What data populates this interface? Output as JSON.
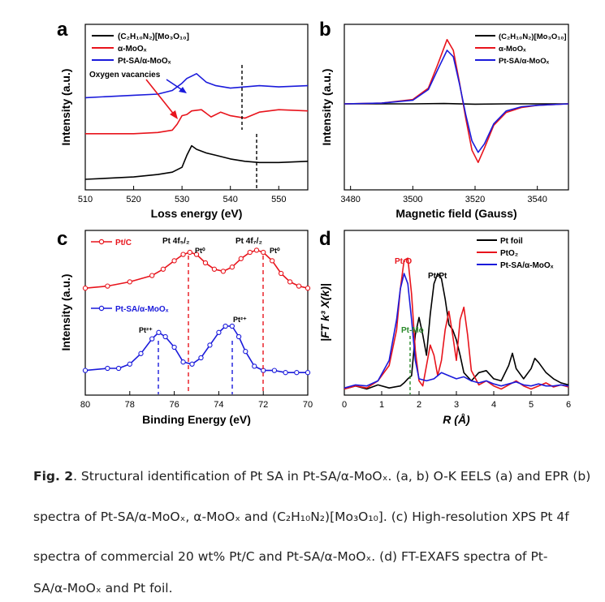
{
  "colors": {
    "black": "#000000",
    "red": "#e8141c",
    "blue": "#1a1adb",
    "green": "#2a8a2a"
  },
  "panels": {
    "a": {
      "letter": "a",
      "xlabel": "Loss energy (eV)",
      "ylabel": "Intensity (a.u.)",
      "xticks": [
        "510",
        "520",
        "530",
        "540",
        "550"
      ],
      "legend": [
        "(C₂H₁₀N₂)[Mo₃O₁₀]",
        "α-MoOₓ",
        "Pt-SA/α-MoOₓ"
      ],
      "annotation": "Oxygen vacancies"
    },
    "b": {
      "letter": "b",
      "xlabel": "Magnetic field (Gauss)",
      "ylabel": "Intensity (a.u.)",
      "xticks": [
        "3480",
        "3500",
        "3520",
        "3540"
      ],
      "legend": [
        "(C₂H₁₀N₂)[Mo₃O₁₀]",
        "α-MoOₓ",
        "Pt-SA/α-MoOₓ"
      ]
    },
    "c": {
      "letter": "c",
      "xlabel": "Binding Energy (eV)",
      "ylabel": "Intensity (a.u.)",
      "xticks": [
        "80",
        "78",
        "76",
        "74",
        "72",
        "70"
      ],
      "legend": [
        "Pt/C",
        "Pt-SA/α-MoOₓ"
      ],
      "peak_labels": [
        "Pt 4f₅/₂",
        "Pt 4f₇/₂",
        "Pt⁰",
        "Pt⁰",
        "Pt²⁺",
        "Pt²⁺"
      ]
    },
    "d": {
      "letter": "d",
      "xlabel": "R (Å)",
      "ylabel": "|FT k³ X(k)|",
      "xticks": [
        "0",
        "1",
        "2",
        "3",
        "4",
        "5",
        "6"
      ],
      "legend": [
        "Pt foil",
        "PtO₂",
        "Pt-SA/α-MoOₓ"
      ],
      "peak_labels": [
        "Pt-O",
        "Pt-Pt",
        "Pt-Mo"
      ]
    }
  },
  "chart_data": [
    {
      "panel": "a",
      "type": "line",
      "xlim": [
        510,
        556
      ],
      "yaxis_ticks": false,
      "series": [
        {
          "name": "(C₂H₁₀N₂)[Mo₃O₁₀]",
          "color": "#000000",
          "x": [
            510,
            515,
            520,
            525,
            528,
            530,
            531,
            532,
            533,
            535,
            537,
            540,
            543,
            546,
            550,
            556
          ],
          "y": [
            0.02,
            0.03,
            0.04,
            0.06,
            0.08,
            0.12,
            0.22,
            0.3,
            0.27,
            0.24,
            0.22,
            0.19,
            0.17,
            0.16,
            0.16,
            0.17
          ]
        },
        {
          "name": "α-MoOₓ",
          "color": "#e8141c",
          "x": [
            510,
            515,
            520,
            525,
            528,
            529,
            530,
            531,
            532,
            534,
            536,
            538,
            540,
            543,
            546,
            550,
            556
          ],
          "y": [
            0.4,
            0.4,
            0.4,
            0.41,
            0.43,
            0.48,
            0.55,
            0.56,
            0.59,
            0.6,
            0.54,
            0.58,
            0.55,
            0.53,
            0.58,
            0.6,
            0.59
          ]
        },
        {
          "name": "Pt-SA/α-MoOₓ",
          "color": "#1a1adb",
          "x": [
            510,
            515,
            520,
            525,
            528,
            530,
            531,
            532,
            533,
            535,
            537,
            540,
            543,
            546,
            550,
            556
          ],
          "y": [
            0.7,
            0.71,
            0.72,
            0.73,
            0.76,
            0.82,
            0.86,
            0.88,
            0.9,
            0.83,
            0.8,
            0.78,
            0.79,
            0.8,
            0.79,
            0.8
          ]
        }
      ]
    },
    {
      "panel": "b",
      "type": "line",
      "xlim": [
        3478,
        3550
      ],
      "yaxis_ticks": false,
      "series": [
        {
          "name": "(C₂H₁₀N₂)[Mo₃O₁₀]",
          "color": "#000000",
          "x": [
            3478,
            3500,
            3510,
            3520,
            3530,
            3550
          ],
          "y": [
            0.0,
            0.0,
            0.005,
            -0.005,
            0.0,
            0.0
          ]
        },
        {
          "name": "α-MoOₓ",
          "color": "#e8141c",
          "x": [
            3478,
            3490,
            3500,
            3505,
            3508,
            3511,
            3513,
            3515,
            3517,
            3519,
            3521,
            3523,
            3526,
            3530,
            3535,
            3540,
            3550
          ],
          "y": [
            0.0,
            0.01,
            0.06,
            0.22,
            0.55,
            0.9,
            0.75,
            0.3,
            -0.2,
            -0.65,
            -0.82,
            -0.62,
            -0.3,
            -0.12,
            -0.05,
            -0.02,
            0.0
          ]
        },
        {
          "name": "Pt-SA/α-MoOₓ",
          "color": "#1a1adb",
          "x": [
            3478,
            3490,
            3500,
            3505,
            3508,
            3511,
            3513,
            3515,
            3517,
            3519,
            3521,
            3523,
            3526,
            3530,
            3535,
            3540,
            3550
          ],
          "y": [
            0.0,
            0.01,
            0.05,
            0.2,
            0.48,
            0.75,
            0.66,
            0.28,
            -0.15,
            -0.52,
            -0.68,
            -0.56,
            -0.28,
            -0.1,
            -0.04,
            -0.02,
            0.0
          ]
        }
      ]
    },
    {
      "panel": "c",
      "type": "scatter",
      "xlim": [
        80,
        70
      ],
      "x_reversed": true,
      "yaxis_ticks": false,
      "series": [
        {
          "name": "Pt/C",
          "color": "#e8141c",
          "x": [
            80,
            79,
            78,
            77,
            76.5,
            76,
            75.6,
            75.3,
            75,
            74.6,
            74.2,
            73.8,
            73.4,
            73,
            72.6,
            72.3,
            72,
            71.6,
            71.2,
            70.8,
            70.4,
            70
          ],
          "y": [
            0.48,
            0.49,
            0.51,
            0.54,
            0.57,
            0.61,
            0.64,
            0.65,
            0.64,
            0.6,
            0.57,
            0.56,
            0.58,
            0.62,
            0.65,
            0.66,
            0.65,
            0.61,
            0.55,
            0.51,
            0.49,
            0.48
          ]
        },
        {
          "name": "Pt-SA/α-MoOₓ",
          "color": "#1a1adb",
          "x": [
            80,
            79,
            78.5,
            78,
            77.5,
            77,
            76.7,
            76.4,
            76,
            75.6,
            75.2,
            74.8,
            74.4,
            74,
            73.7,
            73.4,
            73.1,
            72.8,
            72.4,
            72,
            71.5,
            71,
            70.5,
            70
          ],
          "y": [
            0.09,
            0.1,
            0.1,
            0.12,
            0.17,
            0.24,
            0.27,
            0.25,
            0.2,
            0.13,
            0.12,
            0.15,
            0.21,
            0.27,
            0.3,
            0.3,
            0.25,
            0.18,
            0.11,
            0.09,
            0.09,
            0.08,
            0.08,
            0.08
          ]
        }
      ]
    },
    {
      "panel": "d",
      "type": "line",
      "xlim": [
        0,
        6
      ],
      "ylim": [
        0,
        1.5
      ],
      "yaxis_ticks": false,
      "series": [
        {
          "name": "Pt foil",
          "color": "#000000",
          "x": [
            0,
            0.3,
            0.6,
            0.9,
            1.2,
            1.5,
            1.6,
            1.7,
            1.8,
            1.9,
            2.0,
            2.1,
            2.2,
            2.3,
            2.4,
            2.5,
            2.6,
            2.7,
            2.8,
            2.9,
            3.0,
            3.1,
            3.2,
            3.4,
            3.6,
            3.8,
            4.0,
            4.2,
            4.4,
            4.5,
            4.6,
            4.8,
            5.0,
            5.1,
            5.2,
            5.4,
            5.6,
            5.8,
            6.0
          ],
          "y": [
            0.02,
            0.05,
            0.02,
            0.06,
            0.03,
            0.05,
            0.08,
            0.12,
            0.15,
            0.55,
            0.72,
            0.55,
            0.35,
            0.75,
            1.05,
            1.15,
            1.1,
            0.9,
            0.65,
            0.6,
            0.5,
            0.35,
            0.18,
            0.1,
            0.18,
            0.2,
            0.12,
            0.1,
            0.25,
            0.37,
            0.22,
            0.12,
            0.22,
            0.32,
            0.28,
            0.18,
            0.12,
            0.08,
            0.06
          ]
        },
        {
          "name": "PtO₂",
          "color": "#e8141c",
          "x": [
            0,
            0.3,
            0.6,
            0.9,
            1.2,
            1.4,
            1.5,
            1.6,
            1.7,
            1.8,
            1.9,
            2.0,
            2.1,
            2.2,
            2.3,
            2.4,
            2.5,
            2.6,
            2.7,
            2.8,
            2.9,
            3.0,
            3.1,
            3.2,
            3.3,
            3.4,
            3.6,
            3.8,
            4.0,
            4.2,
            4.4,
            4.6,
            4.8,
            5.0,
            5.2,
            5.4,
            5.6,
            5.8,
            6.0
          ],
          "y": [
            0.02,
            0.05,
            0.03,
            0.1,
            0.25,
            0.6,
            1.0,
            1.28,
            1.3,
            0.95,
            0.4,
            0.1,
            0.05,
            0.25,
            0.45,
            0.35,
            0.15,
            0.3,
            0.6,
            0.78,
            0.55,
            0.3,
            0.7,
            0.82,
            0.55,
            0.2,
            0.06,
            0.1,
            0.05,
            0.02,
            0.06,
            0.1,
            0.05,
            0.02,
            0.05,
            0.08,
            0.04,
            0.06,
            0.04
          ]
        },
        {
          "name": "Pt-SA/α-MoOₓ",
          "color": "#1a1adb",
          "x": [
            0,
            0.3,
            0.6,
            0.9,
            1.2,
            1.4,
            1.5,
            1.6,
            1.7,
            1.8,
            1.9,
            2.0,
            2.2,
            2.4,
            2.6,
            2.8,
            3.0,
            3.2,
            3.4,
            3.6,
            3.8,
            4.0,
            4.2,
            4.4,
            4.6,
            4.8,
            5.0,
            5.2,
            5.4,
            5.6,
            5.8,
            6.0
          ],
          "y": [
            0.03,
            0.06,
            0.05,
            0.1,
            0.3,
            0.7,
            1.0,
            1.15,
            1.05,
            0.7,
            0.3,
            0.12,
            0.1,
            0.12,
            0.18,
            0.15,
            0.12,
            0.14,
            0.1,
            0.08,
            0.1,
            0.07,
            0.05,
            0.07,
            0.09,
            0.06,
            0.05,
            0.07,
            0.05,
            0.05,
            0.06,
            0.05
          ]
        }
      ]
    }
  ],
  "caption": {
    "fig_label": "Fig. 2",
    "lines": [
      ". Structural identification of Pt SA in Pt-SA/α-MoOₓ. (a, b) O-K EELS (a) and EPR (b)",
      "spectra of Pt-SA/α-MoOₓ, α-MoOₓ and (C₂H₁₀N₂)[Mo₃O₁₀]. (c) High-resolution XPS Pt 4f",
      "spectra of commercial 20 wt% Pt/C and Pt-SA/α-MoOₓ. (d) FT-EXAFS spectra of Pt-",
      "SA/α-MoOₓ and Pt foil."
    ]
  }
}
